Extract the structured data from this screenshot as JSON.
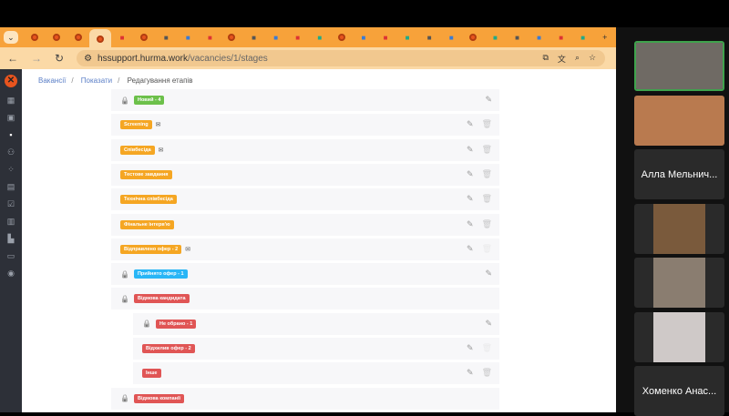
{
  "browser": {
    "tabs": [
      "menu",
      "hurma",
      "hurma",
      "hurma",
      "hurma-active",
      "book",
      "hurma",
      "calendar",
      "media",
      "app",
      "hurma",
      "translate",
      "mail",
      "drive",
      "tool",
      "hurma",
      "settings",
      "direction",
      "globe",
      "bookmark",
      "compass",
      "hurma",
      "close",
      "plus-green",
      "youtube",
      "gmail",
      "drive2",
      "new-tab"
    ],
    "url_host": "hssupport.hurma.work",
    "url_path": "/vacancies/1/stages"
  },
  "sidebar": {
    "items": [
      "dashboard",
      "calendar",
      "vacancies",
      "people",
      "structure",
      "documents",
      "tasks",
      "reports",
      "analytics",
      "knowledge",
      "profile"
    ],
    "active": "vacancies"
  },
  "breadcrumb": {
    "items": [
      "Вакансії",
      "Показати"
    ],
    "current": "Редагування етапів"
  },
  "colors": {
    "green": "#6cc04a",
    "orange": "#f5a623",
    "blue": "#29b6f6",
    "red": "#e05555"
  },
  "stages": [
    {
      "label": "Новий - 4",
      "color": "green",
      "locked": true,
      "mail": false,
      "nested": false,
      "delete": "none"
    },
    {
      "label": "Screening",
      "color": "orange",
      "locked": false,
      "mail": true,
      "nested": false,
      "delete": "enabled"
    },
    {
      "label": "Співбесіда",
      "color": "orange",
      "locked": false,
      "mail": true,
      "nested": false,
      "delete": "enabled"
    },
    {
      "label": "Тестове завдання",
      "color": "orange",
      "locked": false,
      "mail": false,
      "nested": false,
      "delete": "enabled"
    },
    {
      "label": "Технічна співбесіда",
      "color": "orange",
      "locked": false,
      "mail": false,
      "nested": false,
      "delete": "enabled"
    },
    {
      "label": "Фінальне інтерв'ю",
      "color": "orange",
      "locked": false,
      "mail": false,
      "nested": false,
      "delete": "enabled"
    },
    {
      "label": "Відправлено офер - 2",
      "color": "orange",
      "locked": false,
      "mail": true,
      "nested": false,
      "delete": "disabled"
    },
    {
      "label": "Прийнято офер - 1",
      "color": "blue",
      "locked": true,
      "mail": false,
      "nested": false,
      "delete": "none"
    },
    {
      "label": "Відмова кандидата",
      "color": "red",
      "locked": true,
      "mail": false,
      "nested": false,
      "delete": "none",
      "noedit": true
    },
    {
      "label": "Не обрано - 1",
      "color": "red",
      "locked": true,
      "mail": false,
      "nested": true,
      "delete": "none"
    },
    {
      "label": "Відхилив офер - 2",
      "color": "red",
      "locked": false,
      "mail": false,
      "nested": true,
      "delete": "disabled"
    },
    {
      "label": "Інше",
      "color": "red",
      "locked": false,
      "mail": false,
      "nested": true,
      "delete": "enabled"
    },
    {
      "label": "Відмова компанії",
      "color": "red",
      "locked": true,
      "mail": false,
      "nested": false,
      "delete": "none",
      "noedit": true
    }
  ],
  "participants": [
    {
      "name": "",
      "video": true,
      "speaking": true,
      "bg": "#6f6a64"
    },
    {
      "name": "",
      "video": true,
      "speaking": false,
      "bg": "#b97a4f"
    },
    {
      "name": "Алла Мельнич...",
      "video": false
    },
    {
      "name": "",
      "video": true,
      "bg": "#7a5a3c"
    },
    {
      "name": "",
      "video": true,
      "bg": "#8a7d70"
    },
    {
      "name": "",
      "video": true,
      "bg": "#cfc9c8"
    },
    {
      "name": "Хоменко Анас...",
      "video": false
    }
  ]
}
